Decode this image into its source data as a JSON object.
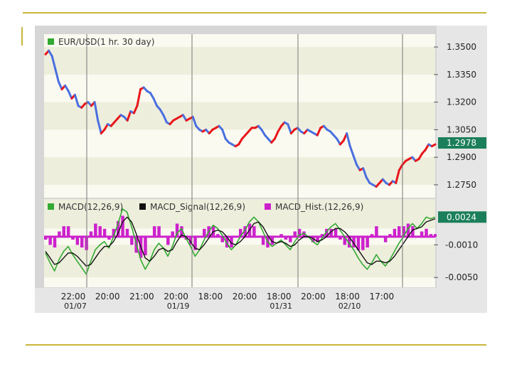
{
  "chart_data": [
    {
      "type": "line",
      "title": "EUR/USD(1 hr. 30 day)",
      "legend_color": "#33aa33",
      "ylim": [
        1.268,
        1.357
      ],
      "y_ticks": [
        "1.3500",
        "1.3350",
        "1.3200",
        "1.3050",
        "1.2900",
        "1.2750"
      ],
      "y_tick_values": [
        1.35,
        1.335,
        1.32,
        1.305,
        1.29,
        1.275
      ],
      "current_value": "1.2978",
      "current_value_num": 1.2978,
      "up_color": "#e8161a",
      "down_color": "#4a6fe0",
      "series": [
        {
          "values": [
            1.346,
            1.348,
            1.345,
            1.338,
            1.331,
            1.327,
            1.329,
            1.326,
            1.322,
            1.324,
            1.318,
            1.317,
            1.319,
            1.32,
            1.318,
            1.32,
            1.31,
            1.303,
            1.305,
            1.308,
            1.307,
            1.309,
            1.311,
            1.313,
            1.312,
            1.31,
            1.315,
            1.314,
            1.318,
            1.327,
            1.328,
            1.326,
            1.325,
            1.322,
            1.318,
            1.316,
            1.313,
            1.309,
            1.308,
            1.31,
            1.311,
            1.312,
            1.313,
            1.31,
            1.311,
            1.312,
            1.307,
            1.305,
            1.304,
            1.305,
            1.303,
            1.305,
            1.306,
            1.307,
            1.305,
            1.3,
            1.298,
            1.297,
            1.296,
            1.297,
            1.3,
            1.302,
            1.304,
            1.306,
            1.306,
            1.307,
            1.305,
            1.302,
            1.3,
            1.298,
            1.3,
            1.304,
            1.307,
            1.309,
            1.308,
            1.303,
            1.305,
            1.306,
            1.304,
            1.303,
            1.305,
            1.304,
            1.303,
            1.302,
            1.306,
            1.307,
            1.305,
            1.304,
            1.302,
            1.3,
            1.297,
            1.299,
            1.303,
            1.296,
            1.291,
            1.286,
            1.283,
            1.284,
            1.279,
            1.276,
            1.275,
            1.274,
            1.276,
            1.278,
            1.276,
            1.275,
            1.277,
            1.276,
            1.283,
            1.286,
            1.288,
            1.289,
            1.29,
            1.288,
            1.289,
            1.292,
            1.294,
            1.297,
            1.296,
            1.297
          ]
        }
      ]
    },
    {
      "type": "line",
      "legend": [
        {
          "label": "MACD(12,26,9)",
          "color": "#33aa33"
        },
        {
          "label": "MACD_Signal(12,26,9)",
          "color": "#111111"
        },
        {
          "label": "MACD_Hist.(12,26,9)",
          "color": "#cc22cc"
        }
      ],
      "ylim": [
        -0.0062,
        0.0046
      ],
      "y_ticks": [
        "-0.0010",
        "-0.0050"
      ],
      "y_tick_values": [
        -0.001,
        -0.005
      ],
      "current_value": "0.0024",
      "current_value_num": 0.0024,
      "x_ticks_top": [
        "22:00",
        "20:00",
        "21:00",
        "20:00",
        "18:00",
        "20:00",
        "18:00",
        "20:00",
        "18:00",
        "17:00"
      ],
      "x_ticks_bottom": [
        "01/07",
        "",
        "",
        "01/19",
        "",
        "",
        "01/31",
        "",
        "02/10",
        ""
      ],
      "series": [
        {
          "name": "MACD(12,26,9)",
          "values": [
            -0.002,
            -0.0032,
            -0.0042,
            -0.0028,
            -0.0018,
            -0.0012,
            -0.0022,
            -0.003,
            -0.0038,
            -0.0046,
            -0.003,
            -0.0016,
            -0.001,
            -0.0006,
            -0.0014,
            0.0,
            0.0016,
            0.0034,
            0.003,
            0.0012,
            -0.0008,
            -0.0028,
            -0.004,
            -0.003,
            -0.0016,
            -0.0008,
            -0.0014,
            -0.0024,
            -0.0012,
            0.0004,
            0.001,
            -0.0002,
            -0.0012,
            -0.0024,
            -0.0016,
            -0.0004,
            0.0006,
            0.0014,
            0.001,
            0.0002,
            -0.0008,
            -0.0016,
            -0.001,
            0.0,
            0.0008,
            0.0018,
            0.0024,
            0.0018,
            0.0006,
            -0.0006,
            -0.0012,
            -0.0008,
            -0.0004,
            -0.001,
            -0.0016,
            -0.0006,
            0.0002,
            0.0004,
            0.0,
            -0.0006,
            -0.001,
            -0.0002,
            0.0006,
            0.0012,
            0.0016,
            0.0008,
            0.0,
            -0.0008,
            -0.0016,
            -0.0026,
            -0.0034,
            -0.004,
            -0.0032,
            -0.0022,
            -0.003,
            -0.0036,
            -0.0028,
            -0.0018,
            -0.0008,
            0.0,
            0.001,
            0.0016,
            0.001,
            0.0016,
            0.0024,
            0.0022,
            0.0024
          ]
        },
        {
          "name": "MACD_Signal(12,26,9)",
          "values": [
            -0.0018,
            -0.0026,
            -0.0034,
            -0.0032,
            -0.0026,
            -0.002,
            -0.002,
            -0.0024,
            -0.003,
            -0.0036,
            -0.0034,
            -0.0026,
            -0.0018,
            -0.0012,
            -0.0012,
            -0.0006,
            0.0004,
            0.0018,
            0.0024,
            0.0018,
            0.0004,
            -0.0012,
            -0.0026,
            -0.003,
            -0.0024,
            -0.0016,
            -0.0014,
            -0.0018,
            -0.0016,
            -0.0006,
            0.0002,
            0.0,
            -0.0006,
            -0.0014,
            -0.0016,
            -0.001,
            -0.0002,
            0.0006,
            0.0008,
            0.0006,
            0.0,
            -0.0008,
            -0.001,
            -0.0006,
            0.0,
            0.0008,
            0.0016,
            0.0018,
            0.0012,
            0.0002,
            -0.0006,
            -0.0008,
            -0.0006,
            -0.0008,
            -0.0012,
            -0.001,
            -0.0004,
            0.0,
            0.0,
            -0.0002,
            -0.0006,
            -0.0004,
            0.0,
            0.0006,
            0.001,
            0.001,
            0.0006,
            0.0,
            -0.0008,
            -0.0016,
            -0.0024,
            -0.0032,
            -0.0034,
            -0.003,
            -0.003,
            -0.0032,
            -0.003,
            -0.0024,
            -0.0016,
            -0.0008,
            0.0,
            0.0008,
            0.001,
            0.0012,
            0.0018,
            0.002,
            0.0022
          ]
        }
      ]
    }
  ]
}
